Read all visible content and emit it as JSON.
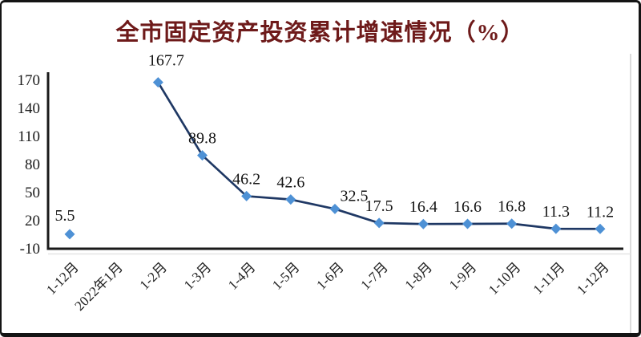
{
  "chart_data": {
    "type": "line",
    "title": "全市固定资产投资累计增速情况（%）",
    "categories": [
      "1-12月",
      "2022年1月",
      "1-2月",
      "1-3月",
      "1-4月",
      "1-5月",
      "1-6月",
      "1-7月",
      "1-8月",
      "1-9月",
      "1-10月",
      "1-11月",
      "1-12月"
    ],
    "values": [
      5.5,
      null,
      167.7,
      89.8,
      46.2,
      42.6,
      32.5,
      17.5,
      16.4,
      16.6,
      16.8,
      11.3,
      11.2
    ],
    "y_ticks": [
      170,
      140,
      110,
      80,
      50,
      20,
      -10
    ],
    "ylim": [
      -10,
      170
    ],
    "xlabel": "",
    "ylabel": "",
    "grid": false,
    "legend": "none",
    "marker": "diamond",
    "data_labels_shown": true,
    "colors": {
      "line": "#1F3864",
      "marker": "#4E91D5",
      "title": "#6e1a1a",
      "axis": "#1a1a1a",
      "label": "#151515",
      "tick": "#1a1a1a",
      "plot_border": "#cfcfcf"
    }
  }
}
